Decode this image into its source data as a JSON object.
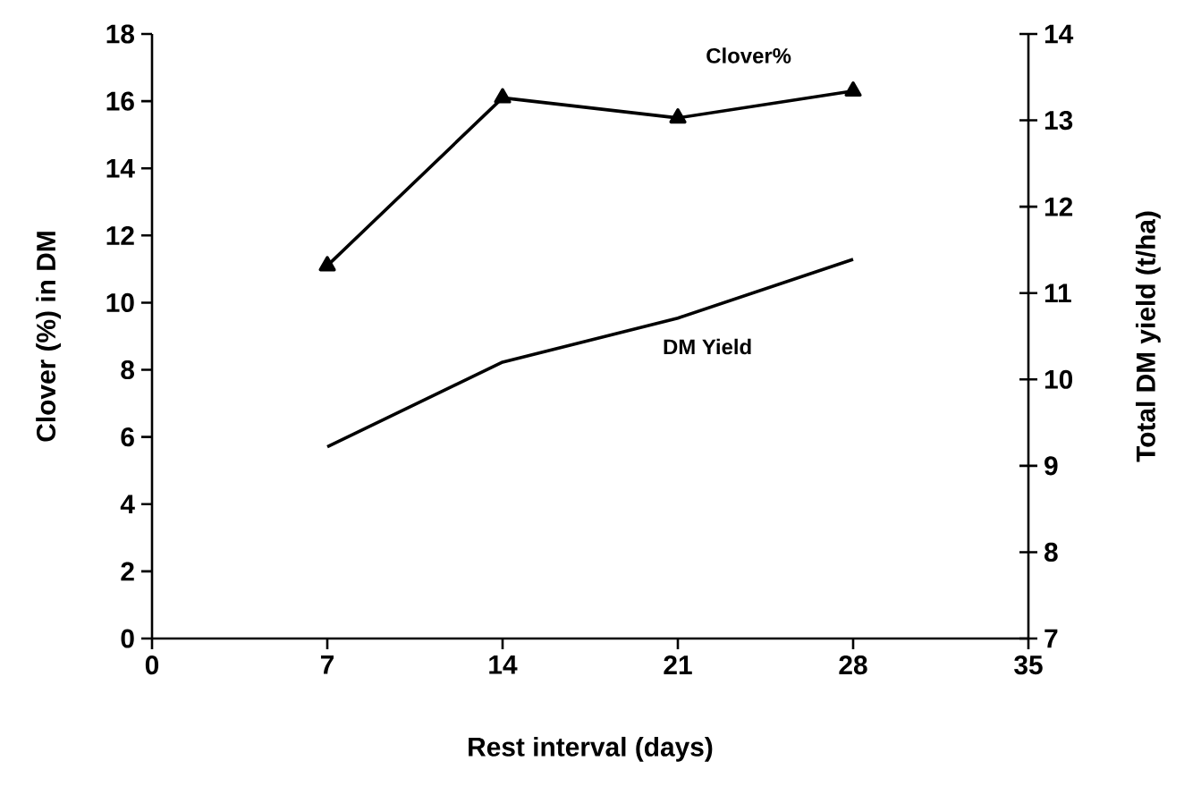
{
  "chart_data": {
    "type": "line",
    "xlabel": "Rest interval (days)",
    "ylabel": "Clover (%) in DM",
    "y2label": "Total DM yield (t/ha)",
    "x": [
      7,
      14,
      21,
      28
    ],
    "series": [
      {
        "name": "Clover%",
        "color": "#000000",
        "values": [
          11.1,
          16.1,
          15.5,
          16.3
        ],
        "marker": "triangle"
      },
      {
        "name": "DM Yield",
        "color": "#000000",
        "values": [
          9.22,
          10.2,
          10.71,
          11.39
        ],
        "axis": "y2",
        "marker": "none"
      }
    ],
    "xlim": [
      0,
      35
    ],
    "xticks": [
      0,
      7,
      14,
      21,
      28,
      35
    ],
    "ylim": [
      0,
      18
    ],
    "yticks": [
      0,
      2,
      4,
      6,
      8,
      10,
      12,
      14,
      16,
      18
    ],
    "y2lim": [
      7,
      14
    ],
    "y2ticks": [
      7,
      8,
      9,
      10,
      11,
      12,
      13,
      14
    ],
    "grid": false,
    "line_style": "solid"
  }
}
